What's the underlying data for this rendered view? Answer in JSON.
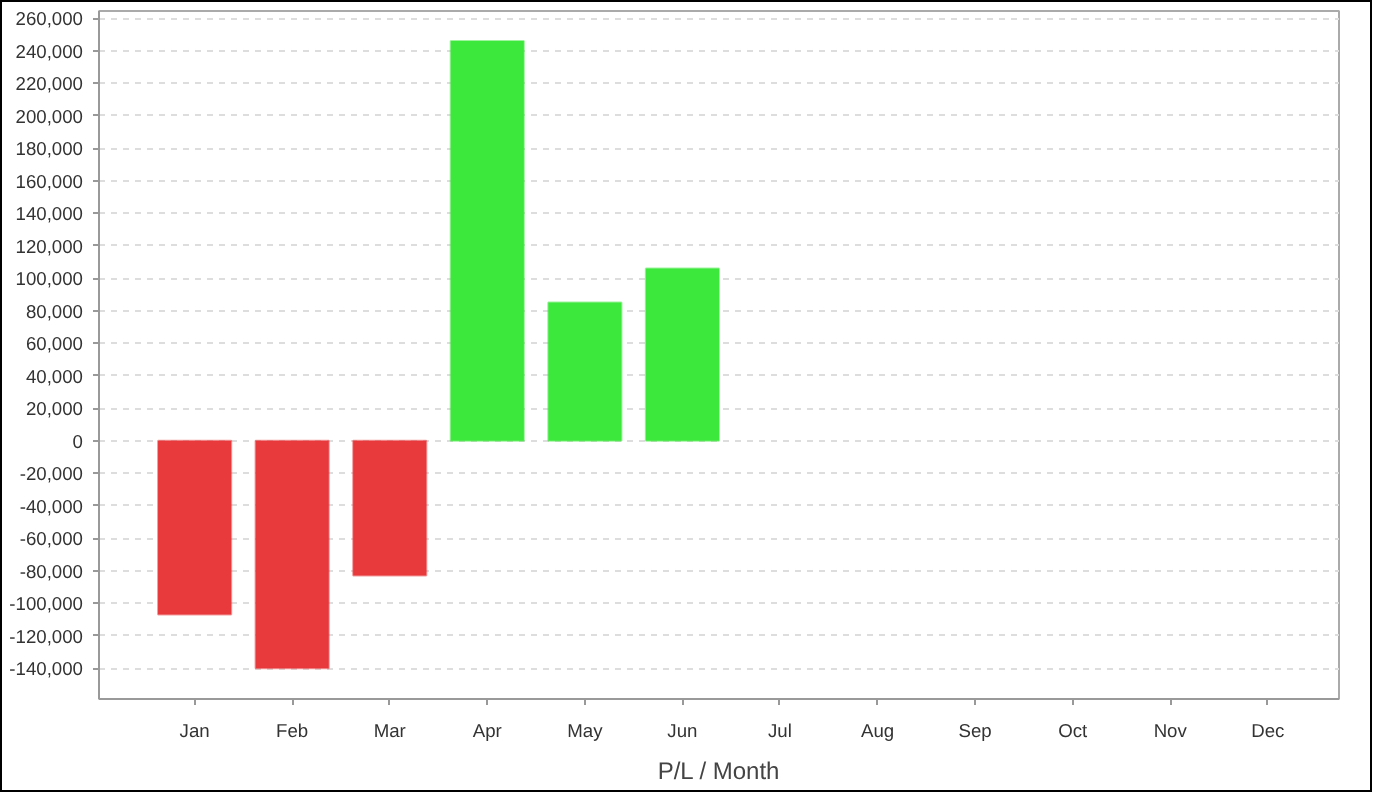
{
  "chart_data": {
    "type": "bar",
    "xlabel": "P/L / Month",
    "categories": [
      "Jan",
      "Feb",
      "Mar",
      "Apr",
      "May",
      "Jun",
      "Jul",
      "Aug",
      "Sep",
      "Oct",
      "Nov",
      "Dec"
    ],
    "values": [
      -107000,
      -140000,
      -83000,
      246000,
      85000,
      106000,
      null,
      null,
      null,
      null,
      null,
      null
    ],
    "colors": [
      "#e8393c",
      "#e8393c",
      "#e8393c",
      "#3de83c",
      "#3de83c",
      "#3de83c",
      null,
      null,
      null,
      null,
      null,
      null
    ],
    "ylim": [
      -159000,
      264500
    ],
    "yticks": [
      {
        "value": -140000,
        "label": "-140,000"
      },
      {
        "value": -120000,
        "label": "-120,000"
      },
      {
        "value": -100000,
        "label": "-100,000"
      },
      {
        "value": -80000,
        "label": "-80,000"
      },
      {
        "value": -60000,
        "label": "-60,000"
      },
      {
        "value": -40000,
        "label": "-40,000"
      },
      {
        "value": -20000,
        "label": "-20,000"
      },
      0,
      {
        "value": 20000,
        "label": "20,000"
      },
      {
        "value": 40000,
        "label": "40,000"
      },
      {
        "value": 60000,
        "label": "60,000"
      },
      {
        "value": 80000,
        "label": "80,000"
      },
      {
        "value": 100000,
        "label": "100,000"
      },
      {
        "value": 120000,
        "label": "120,000"
      },
      {
        "value": 140000,
        "label": "140,000"
      },
      {
        "value": 160000,
        "label": "160,000"
      },
      {
        "value": 180000,
        "label": "180,000"
      },
      {
        "value": 200000,
        "label": "200,000"
      },
      {
        "value": 220000,
        "label": "220,000"
      },
      {
        "value": 240000,
        "label": "240,000"
      },
      {
        "value": 260000,
        "label": "260,000"
      }
    ],
    "grid": "y"
  }
}
